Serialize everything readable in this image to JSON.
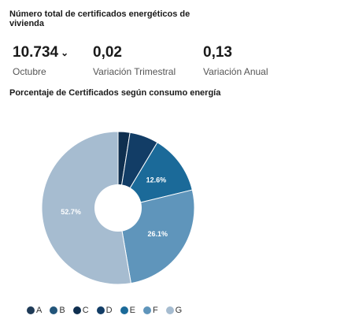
{
  "header": {
    "title": "Número total de certificados energéticos de vivienda"
  },
  "stats": [
    {
      "value": "10.734",
      "trend": "⌄",
      "label": "Octubre"
    },
    {
      "value": "0,02",
      "label": "Variación Trimestral"
    },
    {
      "value": "0,13",
      "label": "Variación Anual"
    }
  ],
  "chart_section": {
    "title": "Porcentaje de Certificados según consumo energía"
  },
  "chart_data": {
    "type": "pie",
    "donut": true,
    "categories": [
      "A",
      "B",
      "C",
      "D",
      "E",
      "F",
      "G"
    ],
    "values": [
      0,
      0,
      2.5,
      6.1,
      12.6,
      26.1,
      52.7
    ],
    "data_labels": [
      "",
      "",
      "",
      "",
      "12.6%",
      "26.1%",
      "52.7%"
    ],
    "colors": [
      "#1f3b57",
      "#22557a",
      "#0f2f4f",
      "#123d66",
      "#1b6a99",
      "#5f95bb",
      "#a6bcd0"
    ],
    "legend_position": "bottom"
  }
}
